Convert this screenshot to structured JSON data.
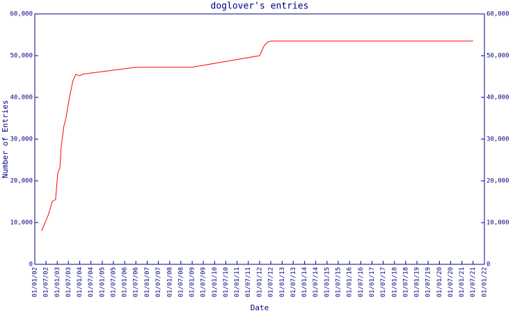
{
  "chart_data": {
    "type": "line",
    "title": "doglover's entries",
    "x_label": "Date",
    "y_label": "Number of Entries",
    "x": [
      "22/04/02",
      "13/08/02",
      "10/10/02",
      "04/12/02",
      "10/01/03",
      "12/02/03",
      "04/03/03",
      "18/04/03",
      "22/05/03",
      "18/07/03",
      "13/09/03",
      "28/10/03",
      "04/01/04",
      "01/03/04",
      "01/07/06",
      "20/12/08",
      "01/01/12",
      "19/03/12",
      "15/05/12",
      "10/07/12",
      "01/07/21"
    ],
    "series": [
      {
        "name": "doglover",
        "color": "#ff0000",
        "values": [
          8000,
          12000,
          15000,
          15500,
          22000,
          23000,
          28000,
          33000,
          35000,
          40000,
          44000,
          45500,
          45200,
          45600,
          47200,
          47200,
          50000,
          52500,
          53300,
          53500,
          53500
        ]
      }
    ],
    "xlim": [
      "01/01/02",
      "01/01/22"
    ],
    "xticks": [
      "01/01/02",
      "01/07/02",
      "01/01/03",
      "01/07/03",
      "01/01/04",
      "01/07/04",
      "01/01/05",
      "01/07/05",
      "01/01/06",
      "01/07/06",
      "01/01/07",
      "01/07/07",
      "01/01/08",
      "01/07/08",
      "01/01/09",
      "01/07/09",
      "01/01/10",
      "01/07/10",
      "01/01/11",
      "01/07/11",
      "01/01/12",
      "01/07/12",
      "01/01/13",
      "01/07/13",
      "01/01/14",
      "01/07/14",
      "01/01/15",
      "01/07/15",
      "01/01/16",
      "01/07/16",
      "01/01/17",
      "01/07/17",
      "01/01/18",
      "01/07/18",
      "01/01/19",
      "01/07/19",
      "01/01/20",
      "01/07/20",
      "01/01/21",
      "01/07/21",
      "01/01/22"
    ],
    "ylim": [
      0,
      60000
    ],
    "yticks": [
      0,
      {
        "value": 10000,
        "label": "10,000"
      },
      {
        "value": 20000,
        "label": "20,000"
      },
      {
        "value": 30000,
        "label": "30,000"
      },
      {
        "value": 40000,
        "label": "40,000"
      },
      {
        "value": 50000,
        "label": "50,000"
      },
      {
        "value": 60000,
        "label": "60,000"
      }
    ],
    "y2lim": [
      0,
      60000
    ],
    "y2ticks": [
      0,
      {
        "value": 10000,
        "label": "10,000"
      },
      {
        "value": 20000,
        "label": "20,000"
      },
      {
        "value": 30000,
        "label": "30,000"
      },
      {
        "value": 40000,
        "label": "40,000"
      },
      {
        "value": 50000,
        "label": "50,000"
      },
      {
        "value": 60000,
        "label": "60,000"
      }
    ]
  }
}
